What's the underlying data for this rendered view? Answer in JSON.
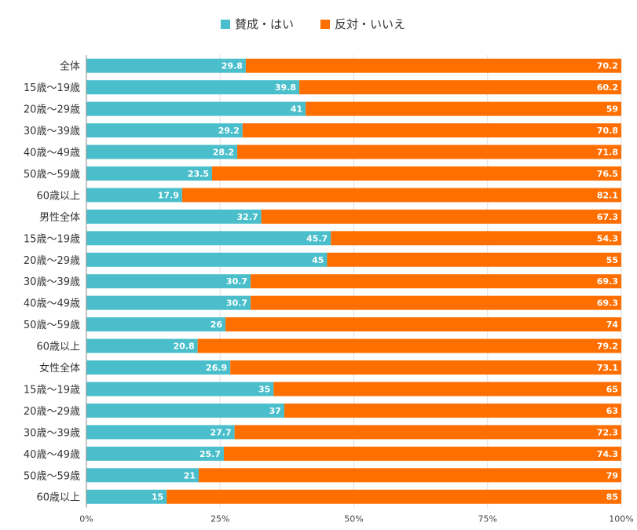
{
  "chart_data": {
    "type": "bar",
    "orientation": "horizontal",
    "stacked": true,
    "legend": {
      "position": "top"
    },
    "categories": [
      "全体",
      "15歳～19歳",
      "20歳～29歳",
      "30歳～39歳",
      "40歳～49歳",
      "50歳～59歳",
      "60歳以上",
      "男性全体",
      "15歳～19歳",
      "20歳～29歳",
      "30歳～39歳",
      "40歳～49歳",
      "50歳～59歳",
      "60歳以上",
      "女性全体",
      "15歳～19歳",
      "20歳～29歳",
      "30歳～39歳",
      "40歳～49歳",
      "50歳～59歳",
      "60歳以上"
    ],
    "series": [
      {
        "name": "賛成・はい",
        "color": "#4abfcb",
        "values": [
          29.8,
          39.8,
          41,
          29.2,
          28.2,
          23.5,
          17.9,
          32.7,
          45.7,
          45,
          30.7,
          30.7,
          26,
          20.8,
          26.9,
          35,
          37,
          27.7,
          25.7,
          21,
          15
        ]
      },
      {
        "name": "反対・いいえ",
        "color": "#ff6f00",
        "values": [
          70.2,
          60.2,
          59,
          70.8,
          71.8,
          76.5,
          82.1,
          67.3,
          54.3,
          55,
          69.3,
          69.3,
          74,
          79.2,
          73.1,
          65,
          63,
          72.3,
          74.3,
          79,
          85
        ]
      }
    ],
    "xlim": [
      0,
      100
    ],
    "x_ticks": [
      0,
      25,
      50,
      75,
      100
    ],
    "x_tick_labels": [
      "0%",
      "25%",
      "50%",
      "75%",
      "100%"
    ],
    "grid": true
  }
}
